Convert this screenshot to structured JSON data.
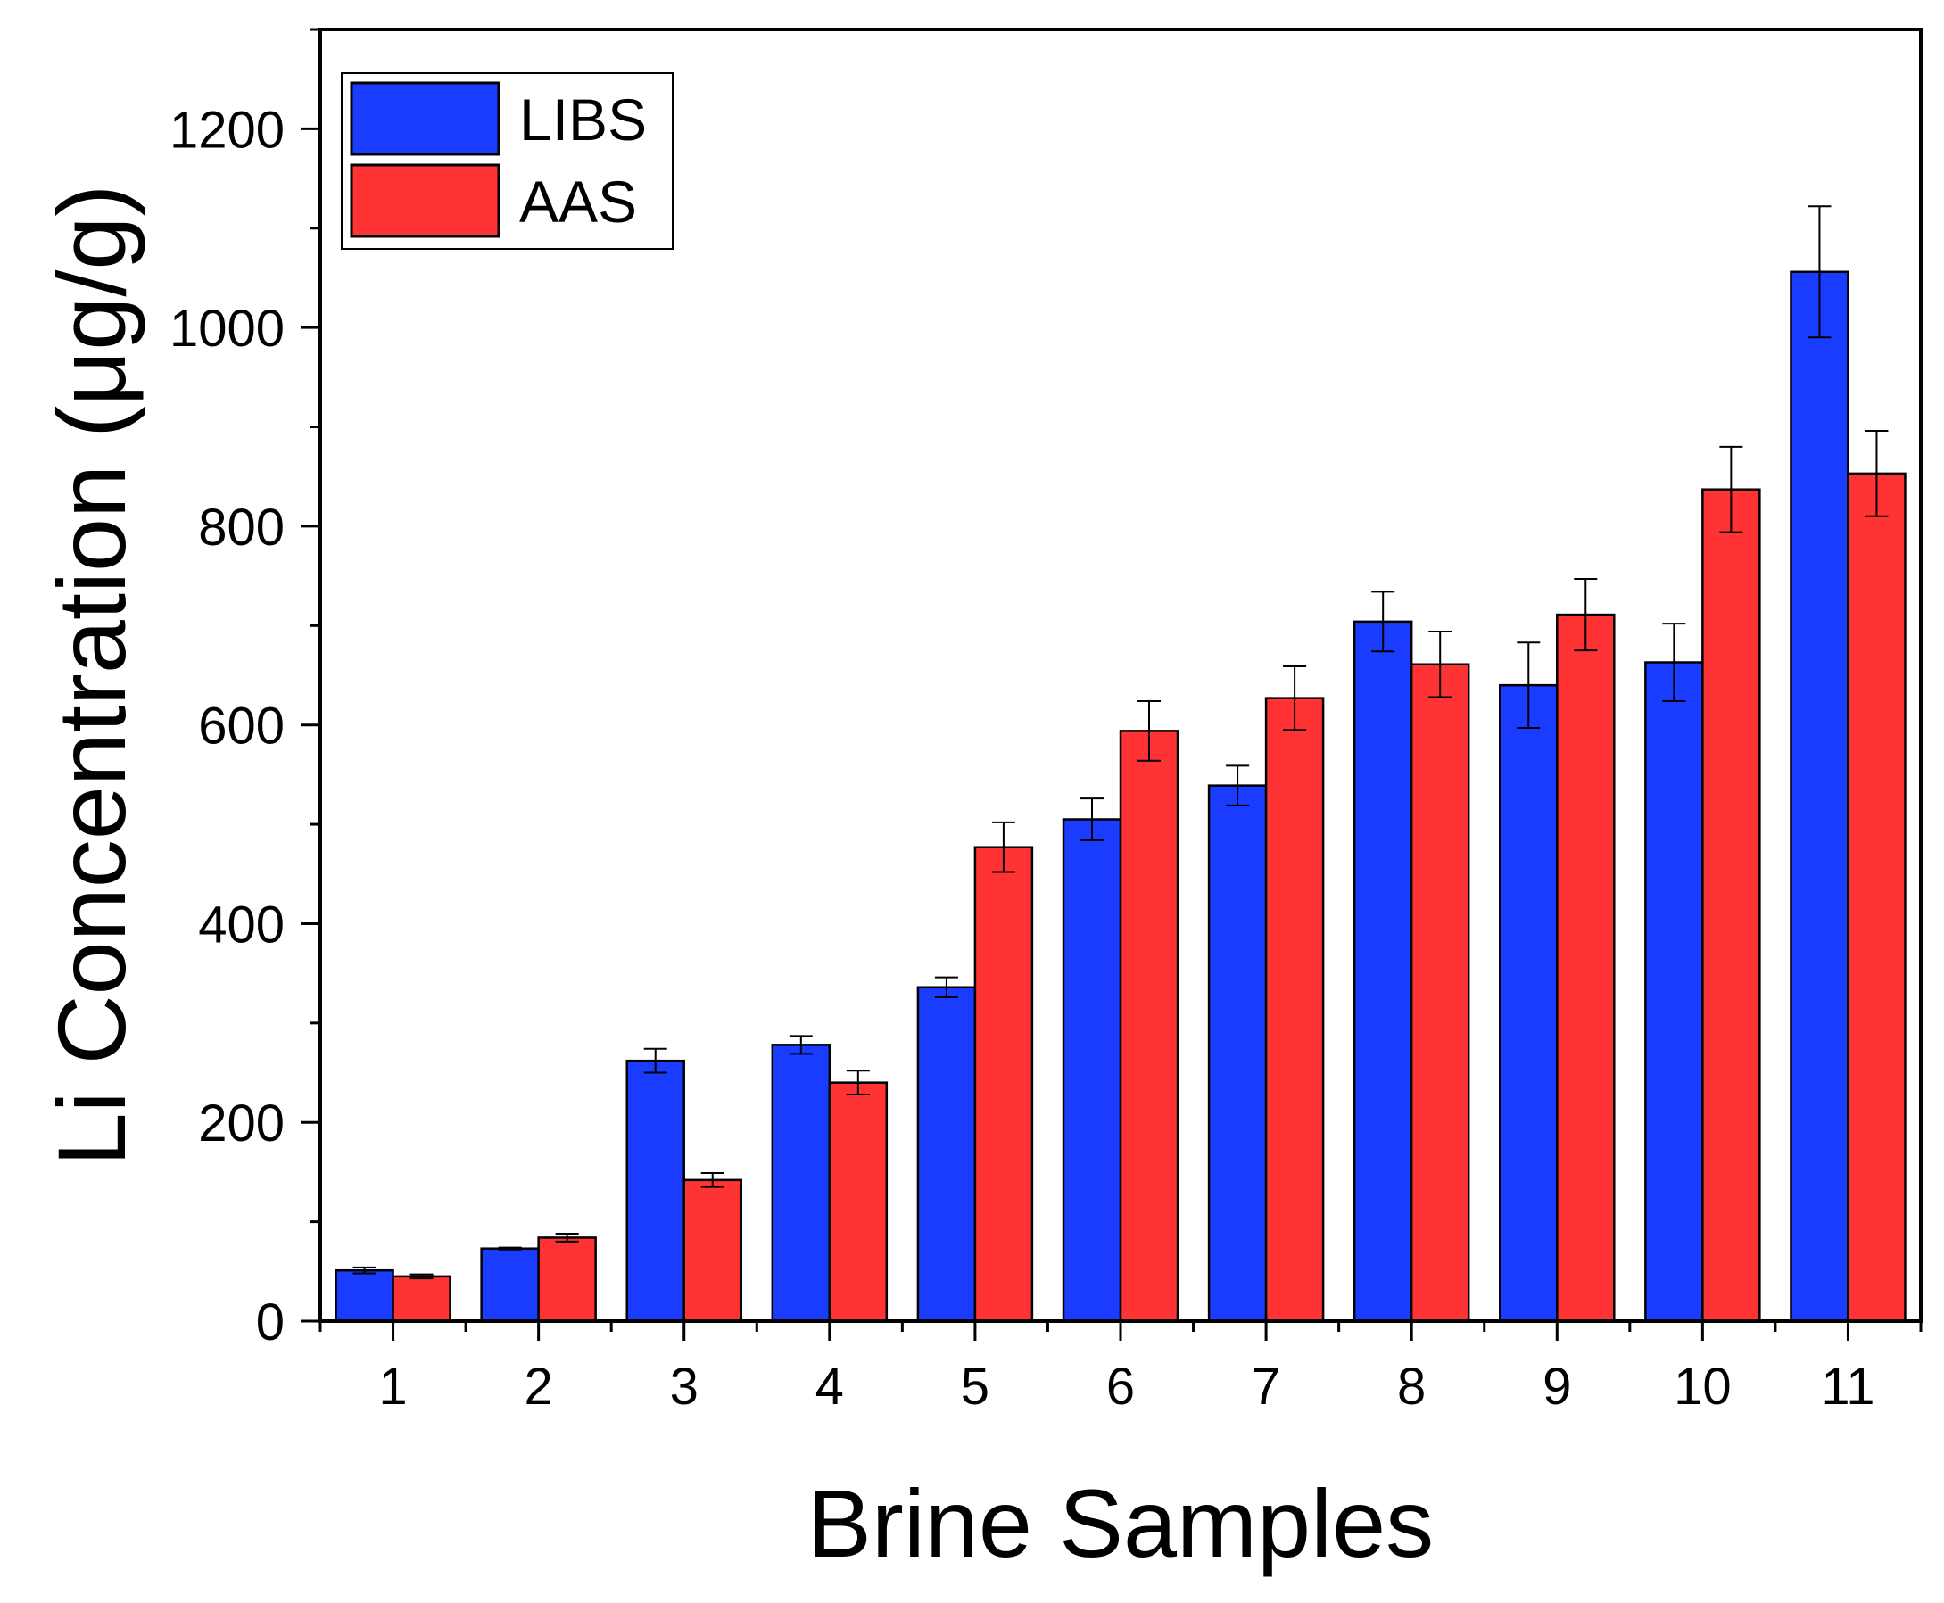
{
  "chart_data": {
    "type": "bar",
    "xlabel": "Brine Samples",
    "ylabel": "Li Concentration (μg/g)",
    "ylim": [
      0,
      1300
    ],
    "yticks": [
      0,
      200,
      400,
      600,
      800,
      1000,
      1200
    ],
    "categories": [
      "1",
      "2",
      "3",
      "4",
      "5",
      "6",
      "7",
      "8",
      "9",
      "10",
      "11"
    ],
    "legend_position": "top-left",
    "grid": false,
    "series": [
      {
        "name": "LIBS",
        "color": "#1a3cff",
        "values": [
          51,
          73,
          262,
          278,
          336,
          505,
          539,
          704,
          640,
          663,
          1056
        ],
        "errors": [
          3,
          1,
          12,
          9,
          10,
          21,
          20,
          30,
          43,
          39,
          66
        ]
      },
      {
        "name": "AAS",
        "color": "#ff3333",
        "values": [
          45,
          84,
          142,
          240,
          477,
          594,
          627,
          661,
          711,
          837,
          853
        ],
        "errors": [
          2,
          4,
          7,
          12,
          25,
          30,
          32,
          33,
          36,
          43,
          43
        ]
      }
    ]
  }
}
